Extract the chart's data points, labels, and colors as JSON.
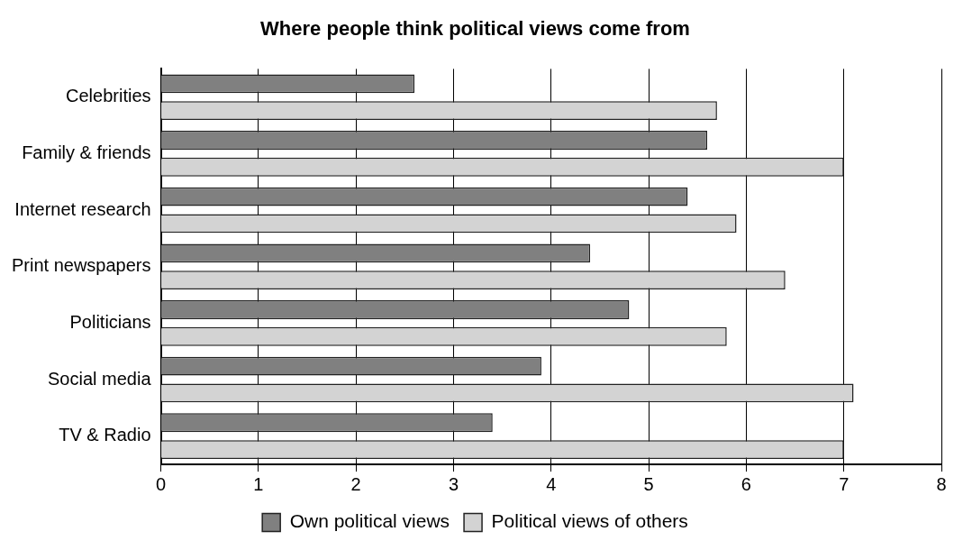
{
  "chart_data": {
    "type": "bar",
    "orientation": "horizontal",
    "title": "Where people think political views come from",
    "categories": [
      "Celebrities",
      "Family & friends",
      "Internet research",
      "Print newspapers",
      "Politicians",
      "Social media",
      "TV & Radio"
    ],
    "series": [
      {
        "name": "Own political views",
        "color": "#808080",
        "values": [
          2.6,
          5.6,
          5.4,
          4.4,
          4.8,
          3.9,
          3.4
        ]
      },
      {
        "name": "Political views of others",
        "color": "#d3d3d3",
        "values": [
          5.7,
          7.0,
          5.9,
          6.4,
          5.8,
          7.1,
          7.0
        ]
      }
    ],
    "xlim": [
      0,
      8
    ],
    "xticks": [
      0,
      1,
      2,
      3,
      4,
      5,
      6,
      7,
      8
    ],
    "grid": "x",
    "legend": "bottom"
  }
}
